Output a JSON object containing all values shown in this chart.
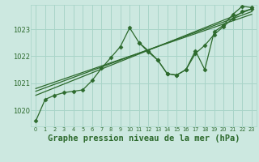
{
  "bg_color": "#cce8e0",
  "grid_color": "#a8d4c8",
  "line_color": "#2d6a2d",
  "xlabel": "Graphe pression niveau de la mer (hPa)",
  "xlabel_fontsize": 7.5,
  "yticks": [
    1020,
    1021,
    1022,
    1023
  ],
  "ylim": [
    1019.4,
    1023.9
  ],
  "xlim": [
    -0.5,
    23.5
  ],
  "xticks": [
    0,
    1,
    2,
    3,
    4,
    5,
    6,
    7,
    8,
    9,
    10,
    11,
    12,
    13,
    14,
    15,
    16,
    17,
    18,
    19,
    20,
    21,
    22,
    23
  ],
  "series": [
    {
      "x": [
        0,
        1,
        2,
        3,
        4,
        5,
        6,
        7,
        8,
        9,
        10,
        11,
        12,
        13,
        14,
        15,
        16,
        17,
        18,
        19,
        20,
        21,
        22,
        23
      ],
      "y": [
        1019.6,
        1020.4,
        1020.55,
        1020.65,
        1020.7,
        1020.75,
        1021.1,
        1021.55,
        1021.95,
        1022.35,
        1023.05,
        1022.5,
        1022.2,
        1021.85,
        1021.35,
        1021.3,
        1021.5,
        1022.2,
        1021.5,
        1022.9,
        1023.15,
        1023.55,
        1023.85,
        1023.8
      ]
    },
    {
      "x": [
        0,
        23
      ],
      "y": [
        1020.55,
        1023.75
      ]
    },
    {
      "x": [
        0,
        23
      ],
      "y": [
        1020.7,
        1023.65
      ]
    },
    {
      "x": [
        0,
        23
      ],
      "y": [
        1020.8,
        1023.55
      ]
    },
    {
      "x": [
        11,
        12,
        13,
        14,
        15,
        16,
        17,
        18,
        19,
        20,
        21,
        22,
        23
      ],
      "y": [
        1022.5,
        1022.15,
        1021.85,
        1021.35,
        1021.3,
        1021.5,
        1022.1,
        1022.4,
        1022.8,
        1023.1,
        1023.4,
        1023.65,
        1023.75
      ]
    }
  ]
}
